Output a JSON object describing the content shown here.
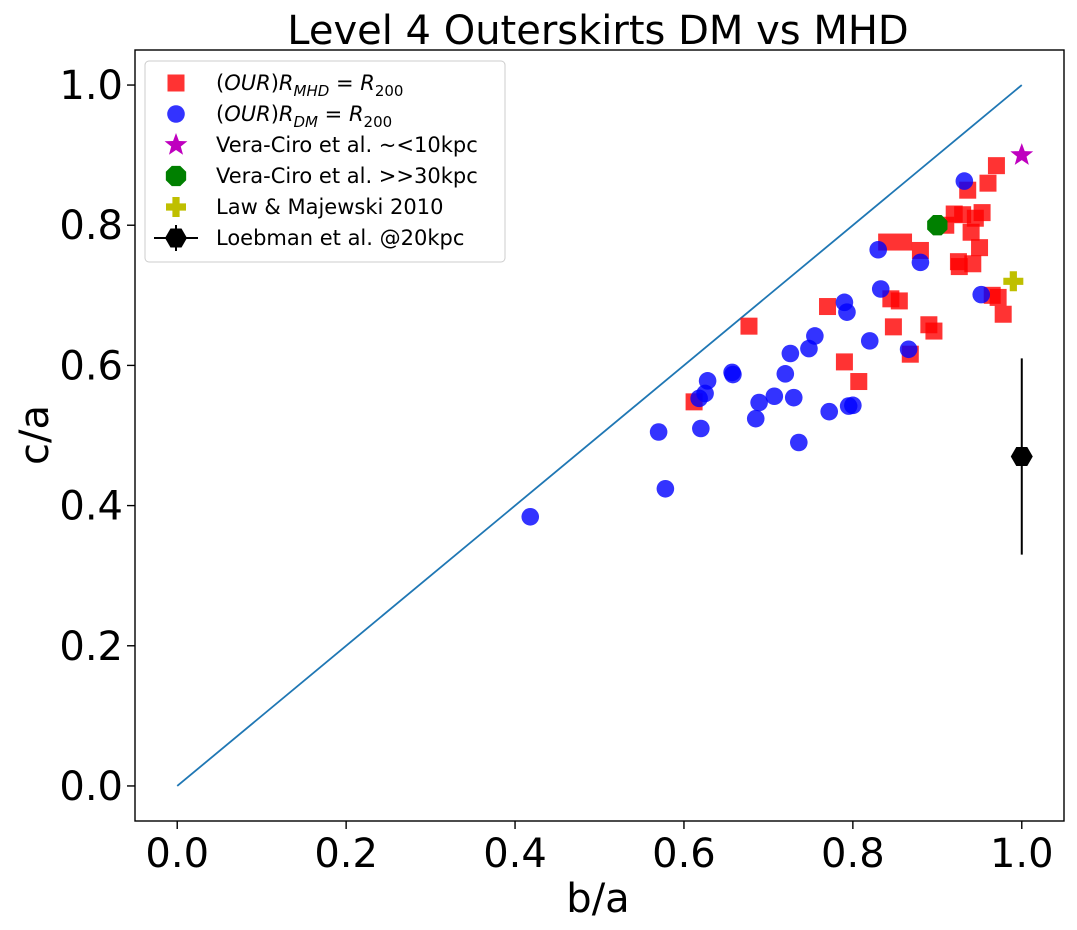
{
  "chart_data": {
    "type": "scatter",
    "title": "Level 4 Outerskirts DM vs MHD",
    "xlabel": "b/a",
    "ylabel": "c/a",
    "xlim": [
      -0.05,
      1.05
    ],
    "ylim": [
      -0.05,
      1.05
    ],
    "xticks": [
      0.0,
      0.2,
      0.4,
      0.6,
      0.8,
      1.0
    ],
    "yticks": [
      0.0,
      0.2,
      0.4,
      0.6,
      0.8,
      1.0
    ],
    "xtick_labels": [
      "0.0",
      "0.2",
      "0.4",
      "0.6",
      "0.8",
      "1.0"
    ],
    "ytick_labels": [
      "0.0",
      "0.2",
      "0.4",
      "0.6",
      "0.8",
      "1.0"
    ],
    "grid": false,
    "legend_position": "top-left",
    "reference_line": {
      "x": [
        0,
        1
      ],
      "y": [
        0,
        1
      ],
      "color": "#1f77b4"
    },
    "series": [
      {
        "name": "(OUR)R_MHD = R_200",
        "name_parts": {
          "pre": "(",
          "ital1": "OUR",
          "mid": ")",
          "ital2": "R",
          "sub1": "MHD",
          "eq": " = ",
          "ital3": "R",
          "sub2": "200"
        },
        "marker": "square",
        "color": "#ff0000",
        "points": [
          [
            0.612,
            0.548
          ],
          [
            0.677,
            0.656
          ],
          [
            0.77,
            0.684
          ],
          [
            0.79,
            0.605
          ],
          [
            0.807,
            0.577
          ],
          [
            0.84,
            0.776
          ],
          [
            0.845,
            0.695
          ],
          [
            0.848,
            0.655
          ],
          [
            0.855,
            0.692
          ],
          [
            0.86,
            0.776
          ],
          [
            0.868,
            0.616
          ],
          [
            0.88,
            0.764
          ],
          [
            0.89,
            0.658
          ],
          [
            0.896,
            0.649
          ],
          [
            0.91,
            0.8
          ],
          [
            0.92,
            0.816
          ],
          [
            0.925,
            0.748
          ],
          [
            0.926,
            0.741
          ],
          [
            0.93,
            0.815
          ],
          [
            0.936,
            0.85
          ],
          [
            0.94,
            0.79
          ],
          [
            0.942,
            0.745
          ],
          [
            0.945,
            0.81
          ],
          [
            0.95,
            0.768
          ],
          [
            0.953,
            0.818
          ],
          [
            0.96,
            0.86
          ],
          [
            0.965,
            0.7
          ],
          [
            0.97,
            0.885
          ],
          [
            0.972,
            0.697
          ],
          [
            0.978,
            0.673
          ]
        ]
      },
      {
        "name": "(OUR)R_DM = R_200",
        "name_parts": {
          "pre": "(",
          "ital1": "OUR",
          "mid": ")",
          "ital2": "R",
          "sub1": "DM",
          "eq": " = ",
          "ital3": "R",
          "sub2": "200"
        },
        "marker": "circle",
        "color": "#0000ff",
        "points": [
          [
            0.418,
            0.384
          ],
          [
            0.57,
            0.505
          ],
          [
            0.578,
            0.424
          ],
          [
            0.618,
            0.553
          ],
          [
            0.62,
            0.51
          ],
          [
            0.625,
            0.56
          ],
          [
            0.628,
            0.578
          ],
          [
            0.657,
            0.59
          ],
          [
            0.658,
            0.587
          ],
          [
            0.685,
            0.524
          ],
          [
            0.689,
            0.547
          ],
          [
            0.707,
            0.556
          ],
          [
            0.72,
            0.588
          ],
          [
            0.726,
            0.617
          ],
          [
            0.73,
            0.554
          ],
          [
            0.736,
            0.49
          ],
          [
            0.748,
            0.624
          ],
          [
            0.755,
            0.642
          ],
          [
            0.772,
            0.534
          ],
          [
            0.79,
            0.69
          ],
          [
            0.793,
            0.676
          ],
          [
            0.795,
            0.542
          ],
          [
            0.8,
            0.543
          ],
          [
            0.82,
            0.635
          ],
          [
            0.83,
            0.765
          ],
          [
            0.833,
            0.709
          ],
          [
            0.866,
            0.623
          ],
          [
            0.88,
            0.747
          ],
          [
            0.932,
            0.863
          ],
          [
            0.952,
            0.701
          ]
        ]
      },
      {
        "name": "Vera-Ciro et al. ~<10kpc",
        "marker": "star",
        "color": "#bf00bf",
        "points": [
          [
            1.0,
            0.9
          ]
        ]
      },
      {
        "name": "Vera-Ciro et al. >>30kpc",
        "marker": "octagon",
        "color": "#008000",
        "points": [
          [
            0.9,
            0.8
          ]
        ]
      },
      {
        "name": "Law & Majewski 2010",
        "marker": "plus",
        "color": "#bfbf00",
        "points": [
          [
            0.99,
            0.72
          ]
        ]
      },
      {
        "name": "Loebman et al. @20kpc",
        "marker": "hexagon",
        "color": "#000000",
        "points": [
          [
            1.0,
            0.47
          ]
        ],
        "yerr": [
          0.14
        ]
      }
    ]
  }
}
